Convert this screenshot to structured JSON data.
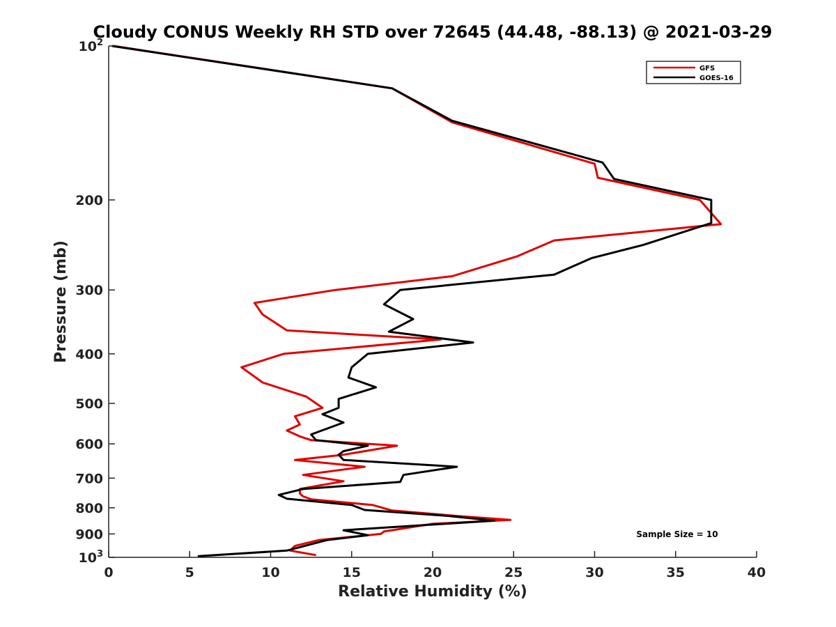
{
  "chart_data": {
    "type": "line",
    "title": "Cloudy CONUS Weekly RH STD over 72645 (44.48, -88.13) @ 2021-03-29",
    "xlabel": "Relative Humidity (%)",
    "ylabel": "Pressure (mb)",
    "xlim": [
      0,
      40
    ],
    "ylim": [
      100,
      1000
    ],
    "y_scale": "log",
    "y_reversed": true,
    "x_ticks": [
      0,
      5,
      10,
      15,
      20,
      25,
      30,
      35,
      40
    ],
    "y_ticks": [
      {
        "value": 100,
        "base": "10",
        "exp": "2"
      },
      {
        "value": 200,
        "label": "200"
      },
      {
        "value": 300,
        "label": "300"
      },
      {
        "value": 400,
        "label": "400"
      },
      {
        "value": 500,
        "label": "500"
      },
      {
        "value": 600,
        "label": "600"
      },
      {
        "value": 700,
        "label": "700"
      },
      {
        "value": 800,
        "label": "800"
      },
      {
        "value": 900,
        "label": "900"
      },
      {
        "value": 1000,
        "base": "10",
        "exp": "3"
      }
    ],
    "legend_position": "top-right",
    "grid": false,
    "annotation": "Sample Size = 10",
    "series": [
      {
        "name": "GFS",
        "color": "#e00000",
        "points": [
          [
            12.8,
            990
          ],
          [
            11.2,
            970
          ],
          [
            11.5,
            950
          ],
          [
            13.0,
            925
          ],
          [
            16.8,
            900
          ],
          [
            17.0,
            890
          ],
          [
            20.0,
            860
          ],
          [
            24.8,
            845
          ],
          [
            21.5,
            830
          ],
          [
            17.5,
            810
          ],
          [
            16.3,
            790
          ],
          [
            12.5,
            770
          ],
          [
            12.0,
            760
          ],
          [
            11.8,
            750
          ],
          [
            11.8,
            735
          ],
          [
            14.5,
            710
          ],
          [
            12.0,
            690
          ],
          [
            15.8,
            665
          ],
          [
            11.5,
            645
          ],
          [
            14.5,
            630
          ],
          [
            17.8,
            605
          ],
          [
            12.5,
            590
          ],
          [
            11.8,
            580
          ],
          [
            11.0,
            565
          ],
          [
            11.8,
            550
          ],
          [
            11.5,
            530
          ],
          [
            13.2,
            510
          ],
          [
            12.2,
            485
          ],
          [
            9.5,
            455
          ],
          [
            8.2,
            425
          ],
          [
            10.8,
            400
          ],
          [
            20.5,
            375
          ],
          [
            11.0,
            360
          ],
          [
            9.5,
            335
          ],
          [
            9.0,
            318
          ],
          [
            14.0,
            300
          ],
          [
            21.2,
            282
          ],
          [
            25.2,
            258
          ],
          [
            27.5,
            240
          ],
          [
            37.8,
            223
          ],
          [
            36.5,
            200
          ],
          [
            30.2,
            181
          ],
          [
            30.0,
            170
          ],
          [
            21.2,
            141
          ],
          [
            17.5,
            121
          ],
          [
            0.3,
            100
          ]
        ]
      },
      {
        "name": "GOES-16",
        "color": "#000000",
        "points": [
          [
            5.5,
            995
          ],
          [
            11.0,
            970
          ],
          [
            13.5,
            925
          ],
          [
            16.0,
            905
          ],
          [
            14.5,
            885
          ],
          [
            23.8,
            848
          ],
          [
            21.0,
            830
          ],
          [
            15.8,
            808
          ],
          [
            15.0,
            790
          ],
          [
            11.0,
            768
          ],
          [
            10.5,
            755
          ],
          [
            12.0,
            735
          ],
          [
            18.0,
            712
          ],
          [
            18.2,
            690
          ],
          [
            21.5,
            665
          ],
          [
            14.5,
            645
          ],
          [
            14.2,
            630
          ],
          [
            14.5,
            620
          ],
          [
            16.0,
            605
          ],
          [
            12.8,
            590
          ],
          [
            12.5,
            575
          ],
          [
            14.5,
            545
          ],
          [
            13.2,
            525
          ],
          [
            14.2,
            510
          ],
          [
            14.2,
            490
          ],
          [
            16.5,
            465
          ],
          [
            14.8,
            445
          ],
          [
            15.0,
            425
          ],
          [
            16.0,
            400
          ],
          [
            22.5,
            380
          ],
          [
            17.3,
            362
          ],
          [
            18.8,
            342
          ],
          [
            17.0,
            320
          ],
          [
            18.0,
            300
          ],
          [
            27.5,
            280
          ],
          [
            29.8,
            260
          ],
          [
            33.0,
            245
          ],
          [
            37.2,
            222
          ],
          [
            37.2,
            200
          ],
          [
            31.2,
            182
          ],
          [
            30.5,
            169
          ],
          [
            21.2,
            140
          ],
          [
            17.5,
            121
          ],
          [
            0.2,
            100
          ]
        ]
      }
    ]
  }
}
